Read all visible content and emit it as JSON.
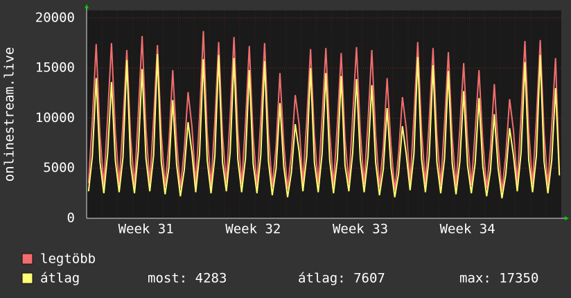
{
  "chart_data": {
    "type": "line",
    "y_label": "onlinestream.live",
    "categories": [
      null,
      null,
      null,
      null,
      null,
      null,
      null,
      null,
      null,
      null,
      null,
      null,
      null,
      null,
      null,
      "Week 31",
      null,
      null,
      null,
      null,
      null,
      null,
      null,
      null,
      null,
      null,
      null,
      null,
      null,
      null,
      null,
      null,
      null,
      null,
      null,
      null,
      null,
      null,
      null,
      null,
      null,
      null,
      null,
      "Week 32",
      null,
      null,
      null,
      null,
      null,
      null,
      null,
      null,
      null,
      null,
      null,
      null,
      null,
      null,
      null,
      null,
      null,
      null,
      null,
      null,
      null,
      null,
      null,
      null,
      null,
      null,
      null,
      "Week 33",
      null,
      null,
      null,
      null,
      null,
      null,
      null,
      null,
      null,
      null,
      null,
      null,
      null,
      null,
      null,
      null,
      null,
      null,
      null,
      null,
      null,
      null,
      null,
      null,
      null,
      null,
      null,
      "Week 34",
      null,
      null,
      null,
      null,
      null,
      null,
      null,
      null,
      null,
      null,
      null,
      null,
      null,
      null,
      null,
      null,
      null,
      null,
      null,
      null,
      null,
      null,
      null,
      null
    ],
    "series": [
      {
        "name": "legtöbb",
        "color": "#f26d6d",
        "values": [
          3500,
          9800,
          17400,
          8200,
          3300,
          10200,
          17500,
          8600,
          3400,
          9600,
          16800,
          8000,
          3300,
          10400,
          18200,
          8900,
          3500,
          9900,
          17300,
          8400,
          3200,
          7400,
          14800,
          7600,
          3000,
          6800,
          12600,
          9200,
          3400,
          10100,
          18700,
          8500,
          3300,
          9700,
          17600,
          8300,
          3500,
          10300,
          18100,
          8700,
          3400,
          9500,
          17200,
          8100,
          3300,
          9900,
          17500,
          8400,
          3100,
          7200,
          14500,
          7400,
          2900,
          6600,
          12300,
          9400,
          3500,
          9800,
          16900,
          8200,
          3400,
          10000,
          17000,
          8500,
          3300,
          9400,
          16500,
          7900,
          3500,
          10200,
          17100,
          8600,
          3400,
          9600,
          16800,
          8300,
          3100,
          7100,
          14000,
          7300,
          2800,
          6400,
          12100,
          9000,
          3600,
          10100,
          17600,
          8700,
          3400,
          9800,
          17000,
          8300,
          3300,
          9500,
          16600,
          8100,
          3200,
          9000,
          15500,
          7800,
          3300,
          8700,
          14800,
          7600,
          3000,
          7000,
          13400,
          7200,
          2700,
          6300,
          11900,
          8800,
          3500,
          10300,
          17700,
          8600,
          3400,
          9900,
          17800,
          8400,
          3300,
          9200,
          16000,
          4500
        ]
      },
      {
        "name": "átlag",
        "color": "#ffff73",
        "values": [
          2700,
          6200,
          14000,
          5600,
          2500,
          6500,
          13600,
          5800,
          2600,
          6100,
          15800,
          5400,
          2500,
          6700,
          14900,
          6000,
          2700,
          6300,
          16400,
          5700,
          2400,
          5100,
          11800,
          5400,
          2200,
          4800,
          9600,
          6600,
          2600,
          6400,
          15900,
          5800,
          2500,
          6200,
          16300,
          5600,
          2700,
          6600,
          16000,
          5900,
          2600,
          6000,
          14800,
          5500,
          2500,
          6300,
          15700,
          5700,
          2300,
          5000,
          11500,
          5200,
          2100,
          4600,
          9400,
          6700,
          2700,
          6200,
          15000,
          5600,
          2600,
          6400,
          14500,
          5800,
          2500,
          5900,
          14200,
          5300,
          2700,
          6500,
          13900,
          5900,
          2600,
          6100,
          13300,
          5600,
          2300,
          4900,
          11000,
          5100,
          2100,
          4500,
          9200,
          6400,
          2800,
          6400,
          16100,
          5900,
          2600,
          6200,
          15300,
          5600,
          2500,
          6000,
          14700,
          5500,
          2400,
          5700,
          12700,
          5300,
          2500,
          5500,
          12000,
          5200,
          2200,
          4800,
          10400,
          5000,
          2000,
          4400,
          9000,
          6300,
          2700,
          6600,
          15600,
          5800,
          2600,
          6300,
          16300,
          5700,
          2500,
          5800,
          13000,
          4283
        ]
      }
    ],
    "legend_stats": [
      "most: 4283",
      "átlag: 7607",
      "max: 17350"
    ],
    "ylim": [
      0,
      20760
    ],
    "yticks": [
      0,
      5000,
      10000,
      15000,
      20000
    ],
    "grid": true
  }
}
